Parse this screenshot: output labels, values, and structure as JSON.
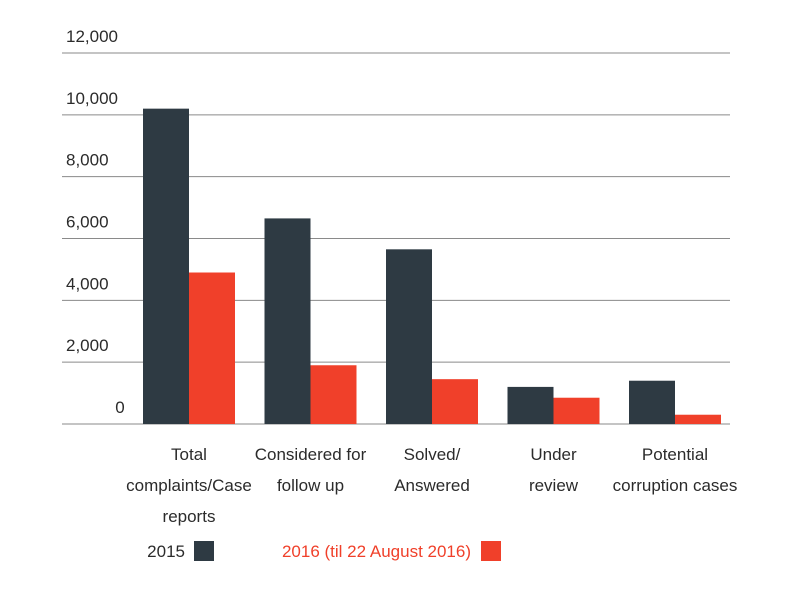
{
  "chart_data": {
    "type": "bar",
    "categories": [
      [
        "Total",
        "complaints/Case",
        "reports"
      ],
      [
        "Considered for",
        "follow up"
      ],
      [
        "Solved/",
        "Answered"
      ],
      [
        "Under",
        "review"
      ],
      [
        "Potential",
        "corruption cases"
      ]
    ],
    "series": [
      {
        "name": "2015",
        "color": "#2e3a43",
        "values": [
          10200,
          6650,
          5650,
          1200,
          1400
        ]
      },
      {
        "name": "2016 (til 22 August 2016)",
        "color": "#f0402a",
        "values": [
          4900,
          1900,
          1450,
          850,
          300
        ]
      }
    ],
    "y_ticks": [
      "0",
      "2,000",
      "4,000",
      "6,000",
      "8,000",
      "10,000",
      "12,000"
    ],
    "ylim": [
      0,
      12000
    ],
    "grid": true,
    "legend_position": "bottom-left",
    "legend_text_colors": [
      "#2b2b2b",
      "#f0402a"
    ]
  }
}
